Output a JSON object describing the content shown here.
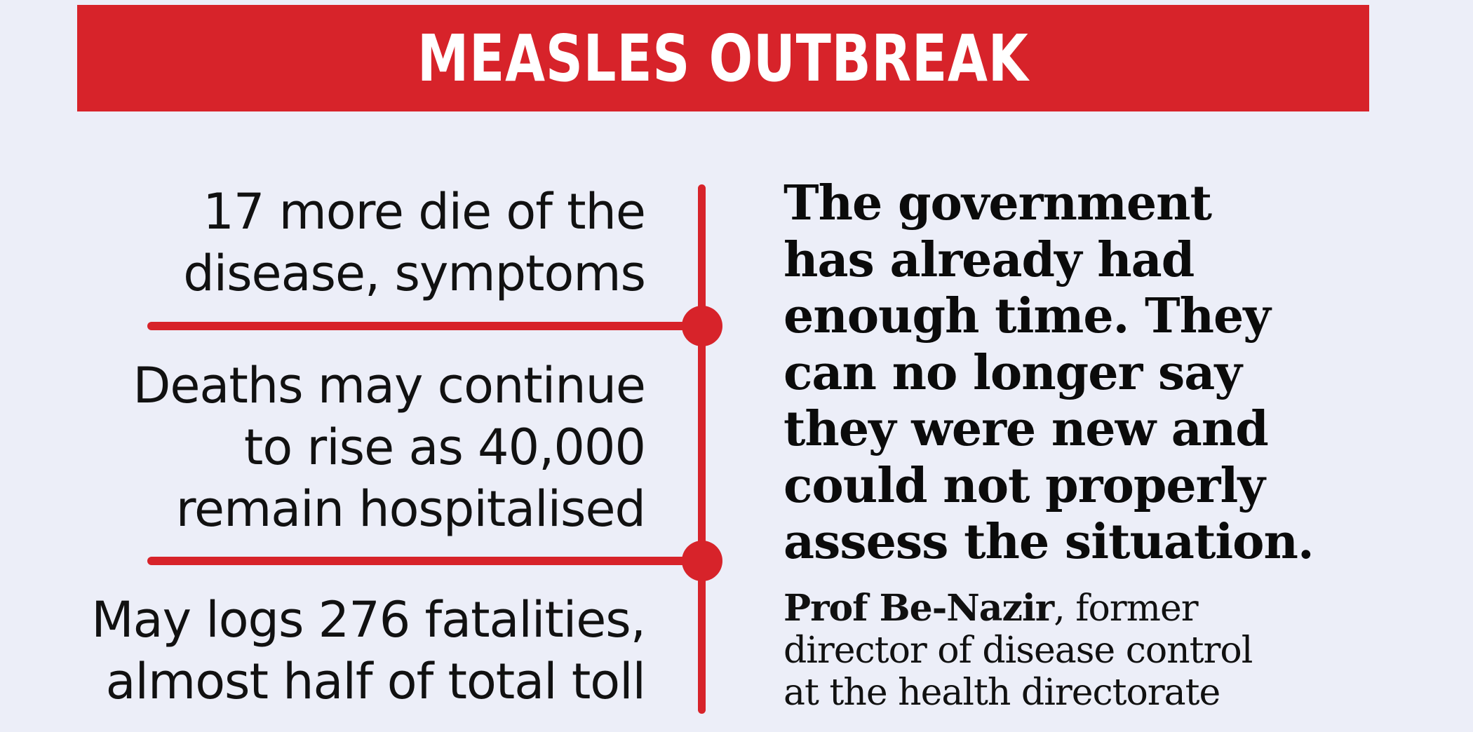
{
  "colors": {
    "background": "#eceef8",
    "accent_red": "#d7232a",
    "text": "#111111"
  },
  "banner": {
    "title": "MEASLES OUTBREAK"
  },
  "facts": {
    "fact_1": {
      "line_1": "17 more die of the",
      "line_2": "disease, symptoms"
    },
    "fact_2": {
      "line_1": "Deaths may continue",
      "line_2": "to rise as 40,000",
      "line_3": "remain hospitalised"
    },
    "fact_3": {
      "line_1": "May logs 276 fatalities,",
      "line_2": "almost half of total toll"
    }
  },
  "quote": {
    "lines": [
      "The government",
      "has already had",
      "enough time. They",
      "can no longer say",
      "they were new and",
      "could not properly",
      "assess the situation."
    ]
  },
  "attribution": {
    "name": "Prof Be-Nazir",
    "role_suffix": ", former",
    "line_2": "director of disease control",
    "line_3": "at the health directorate"
  }
}
